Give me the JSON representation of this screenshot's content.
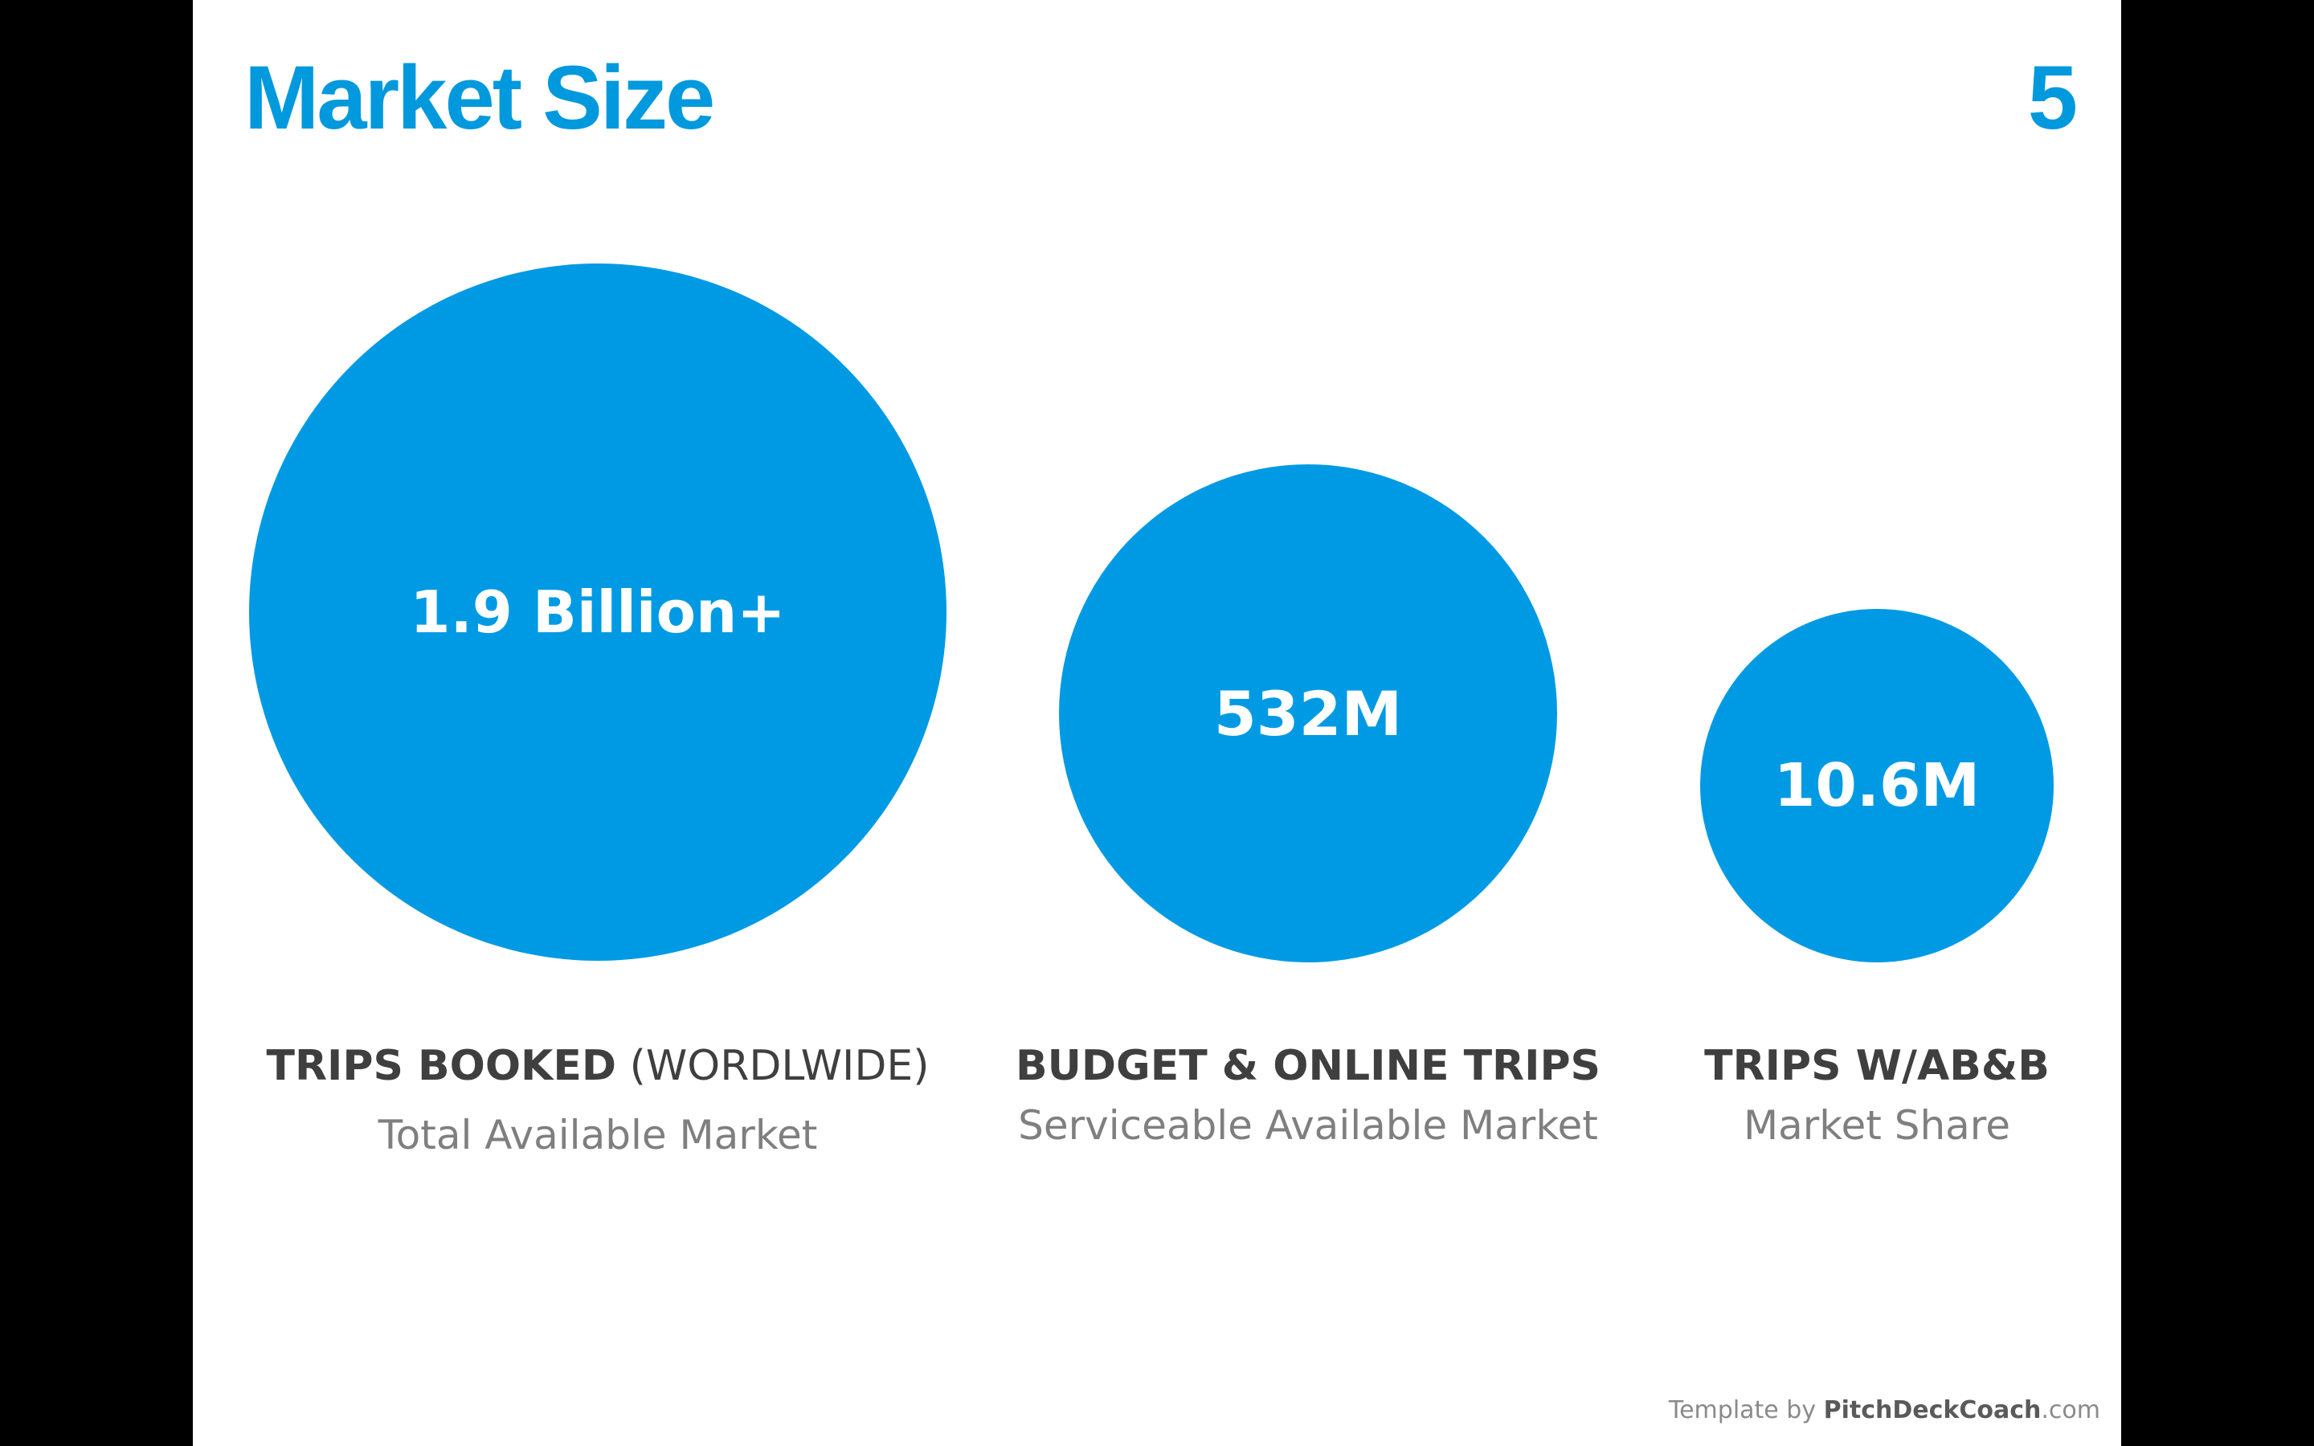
{
  "slide": {
    "title": "Market Size",
    "number": "5"
  },
  "markets": [
    {
      "value": "1.9 Billion+",
      "label_bold": "TRIPS BOOKED",
      "label_light": "(WORDLWIDE)",
      "sublabel": "Total Available Market"
    },
    {
      "value": "532M",
      "label_bold": "BUDGET & ONLINE TRIPS",
      "label_light": "",
      "sublabel": "Serviceable Available Market"
    },
    {
      "value": "10.6M",
      "label_bold": "TRIPS W/AB&B",
      "label_light": "",
      "sublabel": "Market Share"
    }
  ],
  "footer": {
    "prefix": "Template by ",
    "brand": "PitchDeckCoach",
    "suffix": ".com"
  },
  "colors": {
    "accent": "#0099dd",
    "circle": "#009ae4",
    "label_dark": "#3f3f3f",
    "label_gray": "#7f7f7f"
  }
}
